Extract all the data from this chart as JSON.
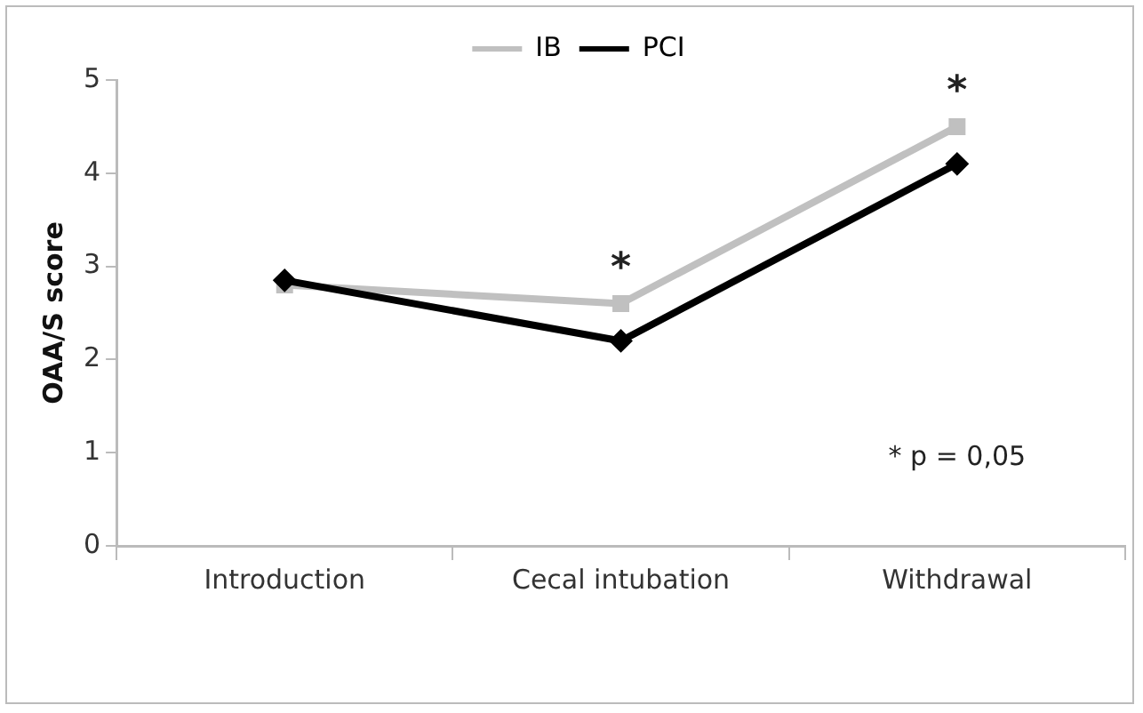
{
  "chart_data": {
    "type": "line",
    "ylabel": "OAA/S score",
    "categories": [
      "Introduction",
      "Cecal intubation",
      "Withdrawal"
    ],
    "series": [
      {
        "name": "IB",
        "color": "#c0c0c0",
        "marker": "square",
        "values": [
          2.8,
          2.6,
          4.5
        ]
      },
      {
        "name": "PCI",
        "color": "#000000",
        "marker": "diamond",
        "values": [
          2.85,
          2.2,
          4.1
        ]
      }
    ],
    "ylim": [
      0,
      5
    ],
    "yticks": [
      0,
      1,
      2,
      3,
      4,
      5
    ],
    "grid": false,
    "legend": "top",
    "annotations": [
      {
        "text": "*",
        "x": "Cecal intubation",
        "y": 2.6
      },
      {
        "text": "*",
        "x": "Withdrawal",
        "y": 4.5
      },
      "* p = 0,05"
    ]
  }
}
